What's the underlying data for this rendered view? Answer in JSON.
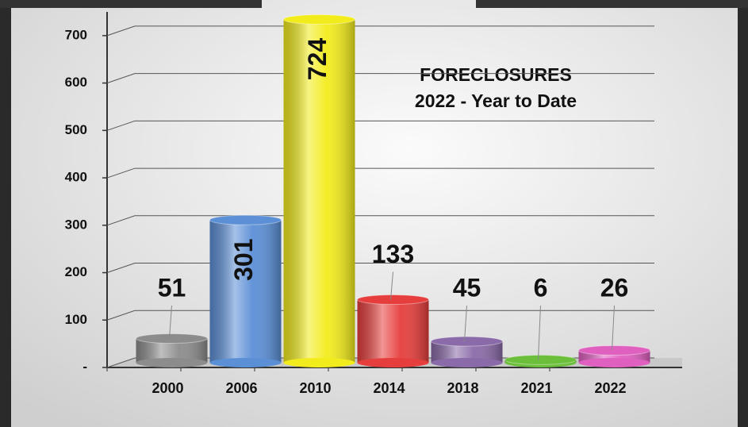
{
  "chart_data": {
    "type": "bar",
    "title": "FORECLOSURES",
    "subtitle": "2022 - Year to Date",
    "categories": [
      "2000",
      "2006",
      "2010",
      "2014",
      "2018",
      "2021",
      "2022"
    ],
    "values": [
      51,
      301,
      724,
      133,
      45,
      6,
      26
    ],
    "colors": [
      "#8c8c8c",
      "#5b8fd6",
      "#f2ec1c",
      "#e63e3c",
      "#8a6aa8",
      "#6cbf3a",
      "#e060c0"
    ],
    "ylim": [
      0,
      750
    ],
    "yticks": [
      {
        "value": 0,
        "label": "-"
      },
      100,
      200,
      300,
      400,
      500,
      600,
      700
    ],
    "grid": true
  }
}
